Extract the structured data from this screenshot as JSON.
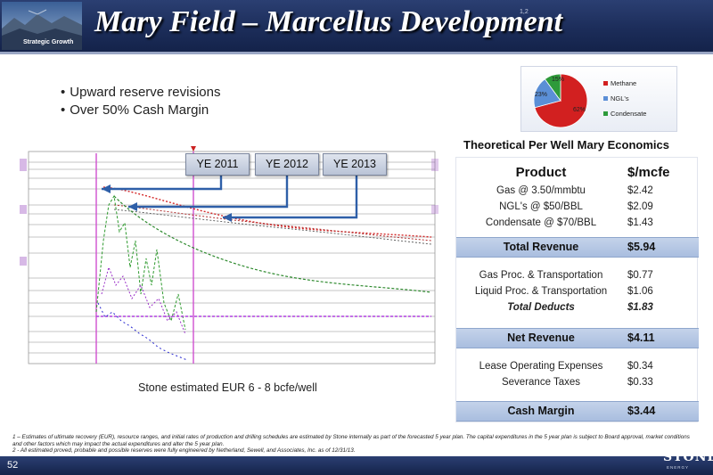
{
  "header": {
    "title": "Mary Field – Marcellus Development",
    "title_superscript": "1,2",
    "tagline": "Strategic Growth"
  },
  "bullets": [
    "Upward reserve revisions",
    "Over 50% Cash Margin"
  ],
  "pie": {
    "labels": [
      "62%",
      "23%",
      "15%"
    ],
    "legend": [
      "Methane",
      "NGL's",
      "Condensate"
    ],
    "colors": [
      "#d22020",
      "#5b8fd6",
      "#2e9a3a"
    ]
  },
  "production_chart": {
    "year_labels": [
      "YE 2011",
      "YE 2012",
      "YE 2013"
    ],
    "caption": "Stone estimated EUR 6 - 8 bcfe/well"
  },
  "economics": {
    "title": "Theoretical Per Well Mary Economics",
    "header": {
      "product": "Product",
      "unit": "$/mcfe"
    },
    "revenue_rows": [
      {
        "label": "Gas @ 3.50/mmbtu",
        "value": "$2.42"
      },
      {
        "label": "NGL's @ $50/BBL",
        "value": "$2.09"
      },
      {
        "label": "Condensate @ $70/BBL",
        "value": "$1.43"
      }
    ],
    "total_revenue": {
      "label": "Total Revenue",
      "value": "$5.94"
    },
    "deduct_rows": [
      {
        "label": "Gas Proc. & Transportation",
        "value": "$0.77"
      },
      {
        "label": "Liquid Proc. & Transportation",
        "value": "$1.06"
      }
    ],
    "total_deducts": {
      "label": "Total Deducts",
      "value": "$1.83"
    },
    "net_revenue": {
      "label": "Net Revenue",
      "value": "$4.11"
    },
    "expense_rows": [
      {
        "label": "Lease Operating Expenses",
        "value": "$0.34"
      },
      {
        "label": "Severance Taxes",
        "value": "$0.33"
      }
    ],
    "cash_margin": {
      "label": "Cash Margin",
      "value": "$3.44"
    }
  },
  "footnotes": [
    "1 – Estimates of ultimate recovery (EUR), resource ranges, and initial rates of production and drilling schedules are estimated by Stone internally as part of the forecasted 5 year plan. The capital expenditures in the 5 year plan is subject to Board approval, market conditions and other factors which may impact the actual expenditures and alter the 5 year plan.",
    "2 - All estimated proved, probable and possible reserves were fully engineered by Netherland, Sewell, and Associates, Inc. as of 12/31/13."
  ],
  "footer": {
    "page_number": "52",
    "logo": "STONE",
    "logo_sub": "ENERGY"
  }
}
